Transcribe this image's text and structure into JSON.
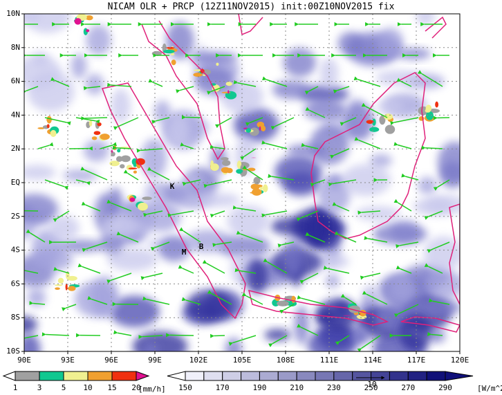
{
  "header": {
    "title": "NICAM OLR + PRCP (12Z11NOV2015) init:00Z10NOV2015 fix"
  },
  "map": {
    "lon_labels": [
      "90E",
      "93E",
      "96E",
      "99E",
      "102E",
      "105E",
      "108E",
      "111E",
      "114E",
      "117E",
      "120E"
    ],
    "lat_labels": [
      "10N",
      "8N",
      "6N",
      "4N",
      "2N",
      "EQ",
      "2S",
      "4S",
      "6S",
      "8S",
      "10S"
    ],
    "markers": [
      "K",
      "M",
      "B"
    ]
  },
  "legends": {
    "precip": {
      "labels": [
        "1",
        "3",
        "5",
        "10",
        "15",
        "20"
      ],
      "unit": "[mm/h]"
    },
    "olr": {
      "labels": [
        "150",
        "170",
        "190",
        "210",
        "230",
        "250",
        "270",
        "290"
      ],
      "unit": "[W/m^2]"
    },
    "vector_ref": "10"
  }
}
